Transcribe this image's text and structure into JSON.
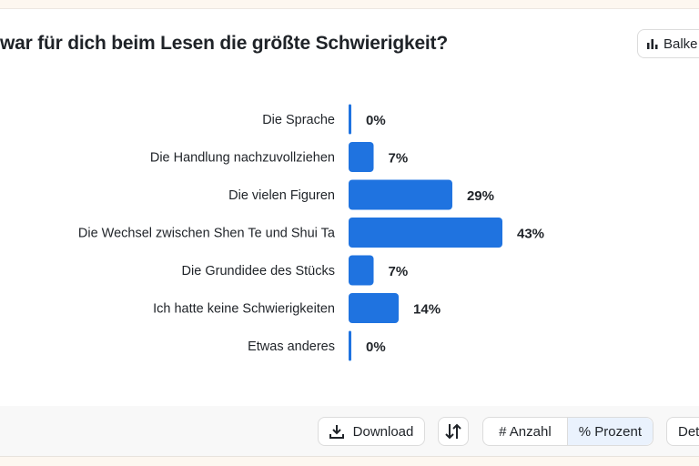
{
  "title": "war für dich beim Lesen die größte Schwierigkeit?",
  "chart_type_button": {
    "label": "Balke",
    "icon": "bar-chart-icon"
  },
  "chart_data": {
    "type": "bar",
    "orientation": "horizontal",
    "categories": [
      "Die Sprache",
      "Die Handlung nachzuvollziehen",
      "Die vielen Figuren",
      "Die Wechsel zwischen Shen Te und Shui Ta",
      "Die Grundidee des Stücks",
      "Ich hatte keine Schwierigkeiten",
      "Etwas anderes"
    ],
    "values": [
      0,
      7,
      29,
      43,
      7,
      14,
      0
    ],
    "value_labels": [
      "0%",
      "7%",
      "29%",
      "43%",
      "7%",
      "14%",
      "0%"
    ],
    "unit": "%",
    "bar_color": "#1f73e0"
  },
  "footer": {
    "download": "Download",
    "sort_icon": "sort-arrows-icon",
    "count": "# Anzahl",
    "percent": "% Prozent",
    "details": "Det",
    "download_icon": "download-icon"
  }
}
